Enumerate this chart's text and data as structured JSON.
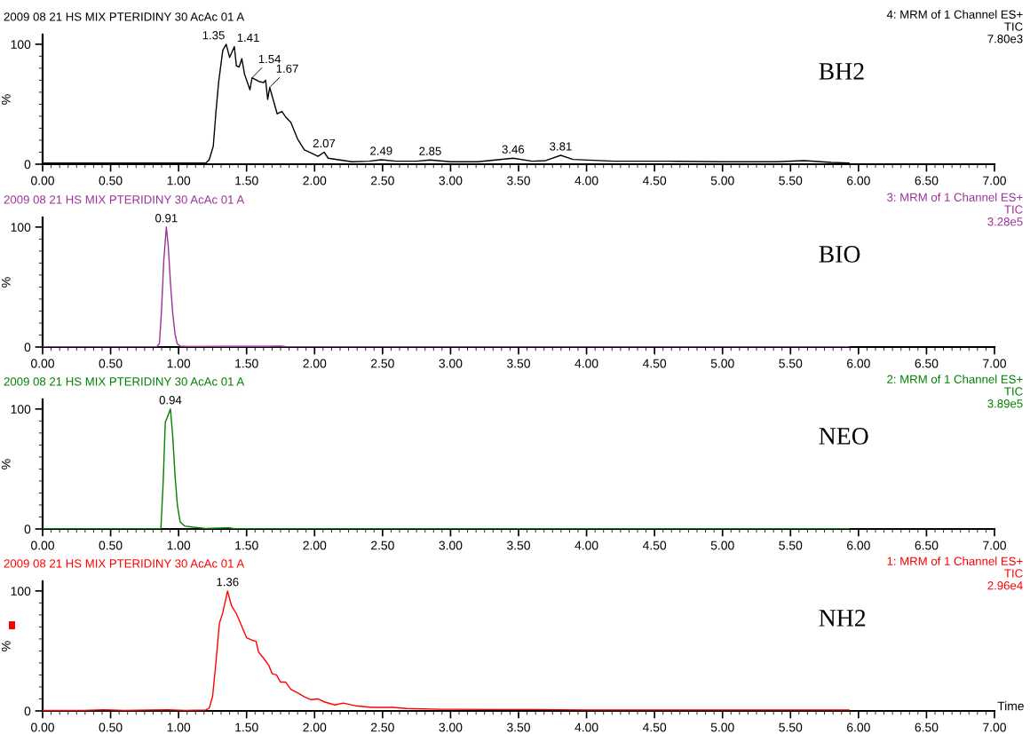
{
  "chart_data": [
    {
      "type": "line",
      "title": "2009 08 21 HS MIX PTERIDINY 30 AcAc 01 A",
      "subtitle": "4: MRM of 1 Channel ES+\nTIC\n7.80e3",
      "ylabel": "%",
      "xlim": [
        0,
        7
      ],
      "ylim": [
        0,
        108
      ],
      "yticks": [
        0,
        100
      ],
      "xticks": [
        {
          "value": 0,
          "label": "0.00"
        },
        {
          "value": 0.5,
          "label": "0.50"
        },
        {
          "value": 1,
          "label": "1.00"
        },
        {
          "value": 1.5,
          "label": "1.50"
        },
        {
          "value": 2,
          "label": "2.00"
        },
        {
          "value": 2.5,
          "label": "2.50"
        },
        {
          "value": 3,
          "label": "3.00"
        },
        {
          "value": 3.5,
          "label": "3.50"
        },
        {
          "value": 4,
          "label": "4.00"
        },
        {
          "value": 4.5,
          "label": "4.50"
        },
        {
          "value": 5,
          "label": "5.00"
        },
        {
          "value": 5.5,
          "label": "5.50"
        },
        {
          "value": 6,
          "label": "6.00"
        },
        {
          "value": 6.5,
          "label": "6.50"
        },
        {
          "value": 7,
          "label": "7.00"
        }
      ],
      "x": [
        0,
        0.2,
        0.4,
        0.6,
        0.8,
        1.0,
        1.2,
        1.225,
        1.255,
        1.275,
        1.295,
        1.325,
        1.35,
        1.375,
        1.41,
        1.425,
        1.445,
        1.465,
        1.485,
        1.525,
        1.54,
        1.59,
        1.625,
        1.64,
        1.655,
        1.67,
        1.725,
        1.76,
        1.79,
        1.825,
        1.875,
        1.925,
        1.975,
        2.025,
        2.07,
        2.1,
        2.175,
        2.275,
        2.4,
        2.49,
        2.6,
        2.75,
        2.85,
        3.0,
        3.2,
        3.46,
        3.6,
        3.7,
        3.81,
        3.9,
        4.2,
        4.6,
        5.0,
        5.4,
        5.6,
        5.8,
        5.93
      ],
      "series": [
        {
          "color": "#000000",
          "values": [
            1,
            1,
            1,
            1,
            1,
            1,
            1,
            3.7,
            15,
            44,
            69,
            95,
            100,
            89,
            98,
            82,
            81,
            88,
            75,
            62,
            72,
            69,
            68,
            70,
            54,
            64,
            42,
            44,
            39,
            35,
            21,
            12,
            9.4,
            6.6,
            10,
            5,
            3.7,
            2,
            2.5,
            3.7,
            2.5,
            2.5,
            3.5,
            2,
            2,
            5,
            2.5,
            3,
            7.4,
            4,
            2.5,
            2.5,
            2,
            2,
            3,
            1.5,
            1
          ]
        }
      ],
      "annotations": [
        {
          "text": "1.35",
          "x": 1.35,
          "y": 100
        },
        {
          "text": "1.41",
          "x": 1.41,
          "y": 98
        },
        {
          "text": "1.54",
          "x": 1.54,
          "y": 72
        },
        {
          "text": "1.67",
          "x": 1.67,
          "y": 64
        },
        {
          "text": "2.07",
          "x": 2.07,
          "y": 10
        },
        {
          "text": "2.49",
          "x": 2.49,
          "y": 3.7
        },
        {
          "text": "2.85",
          "x": 2.85,
          "y": 3.5
        },
        {
          "text": "3.46",
          "x": 3.46,
          "y": 5
        },
        {
          "text": "3.81",
          "x": 3.81,
          "y": 7.4
        },
        "BH2"
      ]
    },
    {
      "type": "line",
      "title": "2009 08 21 HS MIX PTERIDINY 30 AcAc 01 A",
      "subtitle": "3: MRM of 1 Channel ES+\nTIC\n3.28e5",
      "ylabel": "%",
      "xlim": [
        0,
        7
      ],
      "ylim": [
        0,
        108
      ],
      "yticks": [
        0,
        100
      ],
      "xticks": [
        {
          "value": 0,
          "label": "0.00"
        },
        {
          "value": 0.5,
          "label": "0.50"
        },
        {
          "value": 1,
          "label": "1.00"
        },
        {
          "value": 1.5,
          "label": "1.50"
        },
        {
          "value": 2,
          "label": "2.00"
        },
        {
          "value": 2.5,
          "label": "2.50"
        },
        {
          "value": 3,
          "label": "3.00"
        },
        {
          "value": 3.5,
          "label": "3.50"
        },
        {
          "value": 4,
          "label": "4.00"
        },
        {
          "value": 4.5,
          "label": "4.50"
        },
        {
          "value": 5,
          "label": "5.00"
        },
        {
          "value": 5.5,
          "label": "5.50"
        },
        {
          "value": 6,
          "label": "6.00"
        },
        {
          "value": 6.5,
          "label": "6.50"
        },
        {
          "value": 7,
          "label": "7.00"
        }
      ],
      "x": [
        0,
        0.4,
        0.84,
        0.859,
        0.874,
        0.891,
        0.91,
        0.924,
        0.941,
        0.957,
        0.974,
        0.989,
        1.011,
        1.065,
        1.3,
        1.65,
        1.75,
        1.8,
        2.5,
        3.5,
        4.5,
        5.5,
        5.93
      ],
      "series": [
        {
          "color": "#993399",
          "values": [
            0.3,
            0.3,
            0.3,
            3,
            30,
            72,
            100,
            84,
            52,
            28,
            10.6,
            3,
            0.7,
            0.5,
            0.6,
            0.6,
            0.8,
            0.3,
            0.2,
            0.2,
            0.2,
            0.2,
            0.2
          ]
        }
      ],
      "annotations": [
        {
          "text": "0.91",
          "x": 0.91,
          "y": 100
        },
        "BIO"
      ]
    },
    {
      "type": "line",
      "title": "2009 08 21 HS MIX PTERIDINY 30 AcAc 01 A",
      "subtitle": "2: MRM of 1 Channel ES+\nTIC\n3.89e5",
      "ylabel": "%",
      "xlim": [
        0,
        7
      ],
      "ylim": [
        0,
        108
      ],
      "yticks": [
        0,
        100
      ],
      "xticks": [
        {
          "value": 0,
          "label": "0.00"
        },
        {
          "value": 0.5,
          "label": "0.50"
        },
        {
          "value": 1,
          "label": "1.00"
        },
        {
          "value": 1.5,
          "label": "1.50"
        },
        {
          "value": 2,
          "label": "2.00"
        },
        {
          "value": 2.5,
          "label": "2.50"
        },
        {
          "value": 3,
          "label": "3.00"
        },
        {
          "value": 3.5,
          "label": "3.50"
        },
        {
          "value": 4,
          "label": "4.00"
        },
        {
          "value": 4.5,
          "label": "4.50"
        },
        {
          "value": 5,
          "label": "5.00"
        },
        {
          "value": 5.5,
          "label": "5.50"
        },
        {
          "value": 6,
          "label": "6.00"
        },
        {
          "value": 6.5,
          "label": "6.50"
        },
        {
          "value": 7,
          "label": "7.00"
        }
      ],
      "x": [
        0,
        0.4,
        0.87,
        0.887,
        0.902,
        0.917,
        0.94,
        0.957,
        0.974,
        0.991,
        1.011,
        1.043,
        1.109,
        1.196,
        1.37,
        1.41,
        2.0,
        3.0,
        4.0,
        5.0,
        5.93
      ],
      "series": [
        {
          "color": "#008000",
          "values": [
            0.3,
            0.3,
            0.5,
            40,
            89,
            93,
            100,
            77,
            44,
            20,
            6,
            2.5,
            1.5,
            0.5,
            1,
            0.3,
            0.3,
            0.3,
            0.3,
            0.3,
            0.3
          ]
        }
      ],
      "annotations": [
        {
          "text": "0.94",
          "x": 0.94,
          "y": 100
        },
        "NEO"
      ]
    },
    {
      "type": "line",
      "title": "2009 08 21 HS MIX PTERIDINY 30 AcAc 01 A",
      "subtitle": "1: MRM of 1 Channel ES+\nTIC\n2.96e4",
      "ylabel": "%",
      "xlabel": "Time",
      "xlim": [
        0,
        7
      ],
      "ylim": [
        0,
        108
      ],
      "yticks": [
        0,
        100
      ],
      "xticks": [
        {
          "value": 0,
          "label": "0.00"
        },
        {
          "value": 0.5,
          "label": "0.50"
        },
        {
          "value": 1,
          "label": "1.00"
        },
        {
          "value": 1.5,
          "label": "1.50"
        },
        {
          "value": 2,
          "label": "2.00"
        },
        {
          "value": 2.5,
          "label": "2.50"
        },
        {
          "value": 3,
          "label": "3.00"
        },
        {
          "value": 3.5,
          "label": "3.50"
        },
        {
          "value": 4,
          "label": "4.00"
        },
        {
          "value": 4.5,
          "label": "4.50"
        },
        {
          "value": 5,
          "label": "5.00"
        },
        {
          "value": 5.5,
          "label": "5.50"
        },
        {
          "value": 6,
          "label": "6.00"
        },
        {
          "value": 6.5,
          "label": "6.50"
        },
        {
          "value": 7,
          "label": "7.00"
        }
      ],
      "x": [
        0,
        0.3,
        0.45,
        0.6,
        0.8,
        0.92,
        1.05,
        1.2,
        1.225,
        1.25,
        1.275,
        1.3,
        1.325,
        1.36,
        1.388,
        1.425,
        1.463,
        1.5,
        1.538,
        1.57,
        1.588,
        1.625,
        1.663,
        1.688,
        1.72,
        1.75,
        1.788,
        1.825,
        1.875,
        1.925,
        1.975,
        2.025,
        2.075,
        2.15,
        2.21,
        2.3,
        2.425,
        2.575,
        2.675,
        2.925,
        3.3,
        3.6,
        4.0,
        4.5,
        5.0,
        5.5,
        5.93
      ],
      "series": [
        {
          "color": "#ff0000",
          "values": [
            0.5,
            0.5,
            1,
            0.5,
            0.8,
            1,
            0.5,
            0.8,
            2.3,
            12,
            41,
            73,
            82,
            100,
            88,
            81,
            71,
            61,
            59,
            58,
            49,
            44,
            38,
            31,
            30,
            24,
            24,
            18,
            15,
            11.7,
            9.4,
            10,
            7.4,
            5,
            6.6,
            4.3,
            3,
            3,
            2,
            1.4,
            1.2,
            1.2,
            0.8,
            0.8,
            0.8,
            0.8,
            0.8
          ]
        }
      ],
      "annotations": [
        {
          "text": "1.36",
          "x": 1.36,
          "y": 100
        },
        "NH2"
      ]
    }
  ]
}
